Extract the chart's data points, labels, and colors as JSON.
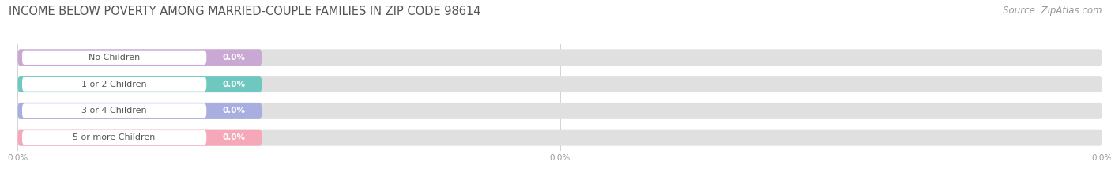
{
  "title": "INCOME BELOW POVERTY AMONG MARRIED-COUPLE FAMILIES IN ZIP CODE 98614",
  "source": "Source: ZipAtlas.com",
  "categories": [
    "No Children",
    "1 or 2 Children",
    "3 or 4 Children",
    "5 or more Children"
  ],
  "values": [
    0.0,
    0.0,
    0.0,
    0.0
  ],
  "bar_colors": [
    "#c9a8d4",
    "#6ec8c0",
    "#a8aee0",
    "#f5a8b8"
  ],
  "bar_bg_color": "#e0e0e0",
  "white_pill_color": "#ffffff",
  "background_color": "#ffffff",
  "value_text_color": "#ffffff",
  "label_text_color": "#555555",
  "title_color": "#555555",
  "source_color": "#999999",
  "title_fontsize": 10.5,
  "label_fontsize": 8.0,
  "value_fontsize": 7.5,
  "source_fontsize": 8.5,
  "xtick_fontsize": 7.5,
  "xtick_color": "#999999"
}
